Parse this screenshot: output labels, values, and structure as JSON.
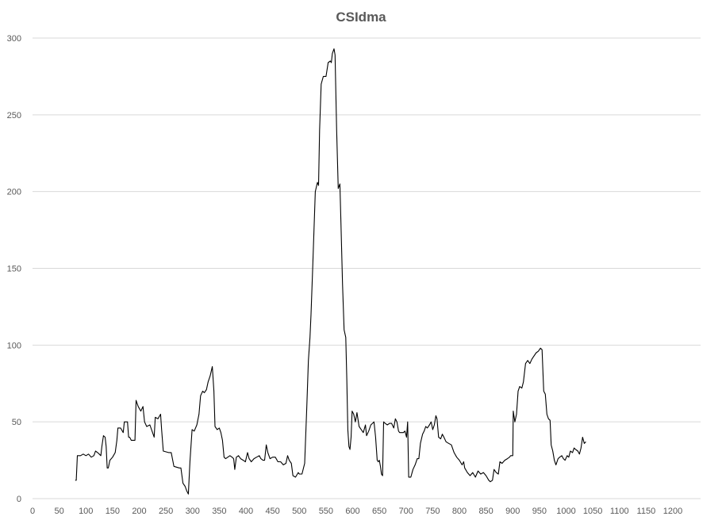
{
  "chart_data": {
    "type": "line",
    "title": "CSIdma",
    "xlabel": "",
    "ylabel": "",
    "xlim": [
      0,
      1250
    ],
    "ylim": [
      0,
      300
    ],
    "x_ticks": [
      "0",
      "50",
      "100",
      "150",
      "200",
      "250",
      "300",
      "350",
      "400",
      "450",
      "500",
      "550",
      "600",
      "650",
      "700",
      "750",
      "800",
      "850",
      "900",
      "950",
      "1000",
      "1050",
      "1100",
      "1150",
      "1200"
    ],
    "y_ticks": [
      "0",
      "50",
      "100",
      "150",
      "200",
      "250",
      "300"
    ],
    "grid": "horizontal",
    "colors": {
      "line": "#000000",
      "grid": "#d9d9d9",
      "text": "#595959"
    },
    "series": [
      {
        "name": "",
        "points": [
          [
            80,
            12
          ],
          [
            82,
            12
          ],
          [
            84,
            28
          ],
          [
            90,
            28
          ],
          [
            95,
            29
          ],
          [
            100,
            28
          ],
          [
            105,
            29
          ],
          [
            110,
            27
          ],
          [
            115,
            28
          ],
          [
            118,
            31
          ],
          [
            122,
            30
          ],
          [
            125,
            29
          ],
          [
            128,
            28
          ],
          [
            130,
            34
          ],
          [
            133,
            41
          ],
          [
            136,
            40
          ],
          [
            138,
            34
          ],
          [
            140,
            20
          ],
          [
            142,
            20
          ],
          [
            145,
            25
          ],
          [
            150,
            27
          ],
          [
            155,
            30
          ],
          [
            158,
            38
          ],
          [
            160,
            46
          ],
          [
            165,
            46
          ],
          [
            170,
            43
          ],
          [
            172,
            50
          ],
          [
            178,
            50
          ],
          [
            180,
            40
          ],
          [
            182,
            40
          ],
          [
            185,
            38
          ],
          [
            192,
            38
          ],
          [
            194,
            64
          ],
          [
            198,
            60
          ],
          [
            203,
            57
          ],
          [
            207,
            60
          ],
          [
            210,
            50
          ],
          [
            214,
            47
          ],
          [
            220,
            48
          ],
          [
            225,
            43
          ],
          [
            228,
            40
          ],
          [
            230,
            53
          ],
          [
            235,
            52
          ],
          [
            240,
            55
          ],
          [
            242,
            45
          ],
          [
            245,
            31
          ],
          [
            255,
            30
          ],
          [
            260,
            30
          ],
          [
            265,
            21
          ],
          [
            275,
            20
          ],
          [
            278,
            20
          ],
          [
            282,
            10
          ],
          [
            286,
            8
          ],
          [
            289,
            5
          ],
          [
            292,
            3
          ],
          [
            295,
            24
          ],
          [
            299,
            45
          ],
          [
            303,
            44
          ],
          [
            308,
            48
          ],
          [
            312,
            55
          ],
          [
            315,
            67
          ],
          [
            319,
            70
          ],
          [
            322,
            69
          ],
          [
            326,
            71
          ],
          [
            329,
            76
          ],
          [
            333,
            80
          ],
          [
            337,
            86
          ],
          [
            340,
            70
          ],
          [
            342,
            47
          ],
          [
            346,
            45
          ],
          [
            350,
            46
          ],
          [
            353,
            43
          ],
          [
            356,
            38
          ],
          [
            359,
            27
          ],
          [
            362,
            26
          ],
          [
            366,
            27
          ],
          [
            370,
            28
          ],
          [
            374,
            27
          ],
          [
            377,
            26
          ],
          [
            379,
            19
          ],
          [
            382,
            27
          ],
          [
            386,
            28
          ],
          [
            390,
            26
          ],
          [
            395,
            25
          ],
          [
            399,
            24
          ],
          [
            403,
            30
          ],
          [
            406,
            26
          ],
          [
            410,
            24
          ],
          [
            415,
            26
          ],
          [
            420,
            27
          ],
          [
            425,
            28
          ],
          [
            428,
            26
          ],
          [
            432,
            25
          ],
          [
            435,
            25
          ],
          [
            438,
            35
          ],
          [
            441,
            30
          ],
          [
            445,
            26
          ],
          [
            450,
            27
          ],
          [
            455,
            27
          ],
          [
            460,
            24
          ],
          [
            465,
            24
          ],
          [
            470,
            22
          ],
          [
            475,
            23
          ],
          [
            478,
            28
          ],
          [
            481,
            25
          ],
          [
            485,
            23
          ],
          [
            488,
            15
          ],
          [
            493,
            14
          ],
          [
            498,
            17
          ],
          [
            500,
            16
          ],
          [
            505,
            16
          ],
          [
            510,
            23
          ],
          [
            514,
            60
          ],
          [
            517,
            90
          ],
          [
            520,
            105
          ],
          [
            522,
            120
          ],
          [
            525,
            150
          ],
          [
            530,
            200
          ],
          [
            534,
            206
          ],
          [
            536,
            204
          ],
          [
            538,
            240
          ],
          [
            541,
            270
          ],
          [
            545,
            275
          ],
          [
            550,
            275
          ],
          [
            554,
            284
          ],
          [
            558,
            285
          ],
          [
            560,
            284
          ],
          [
            562,
            290
          ],
          [
            565,
            293
          ],
          [
            567,
            289
          ],
          [
            570,
            240
          ],
          [
            573,
            202
          ],
          [
            576,
            205
          ],
          [
            578,
            180
          ],
          [
            581,
            140
          ],
          [
            584,
            110
          ],
          [
            587,
            105
          ],
          [
            589,
            78
          ],
          [
            591,
            45
          ],
          [
            593,
            34
          ],
          [
            595,
            32
          ],
          [
            597,
            40
          ],
          [
            599,
            57
          ],
          [
            602,
            55
          ],
          [
            605,
            50
          ],
          [
            608,
            56
          ],
          [
            612,
            47
          ],
          [
            616,
            45
          ],
          [
            620,
            43
          ],
          [
            624,
            48
          ],
          [
            626,
            41
          ],
          [
            630,
            44
          ],
          [
            634,
            48
          ],
          [
            637,
            49
          ],
          [
            640,
            50
          ],
          [
            643,
            40
          ],
          [
            646,
            25
          ],
          [
            648,
            24
          ],
          [
            650,
            25
          ],
          [
            652,
            21
          ],
          [
            654,
            16
          ],
          [
            656,
            15
          ],
          [
            658,
            50
          ],
          [
            661,
            49
          ],
          [
            665,
            48
          ],
          [
            669,
            49
          ],
          [
            673,
            49
          ],
          [
            677,
            46
          ],
          [
            680,
            52
          ],
          [
            683,
            50
          ],
          [
            686,
            44
          ],
          [
            688,
            43
          ],
          [
            692,
            43
          ],
          [
            695,
            43
          ],
          [
            698,
            44
          ],
          [
            701,
            40
          ],
          [
            703,
            50
          ],
          [
            705,
            14
          ],
          [
            709,
            14
          ],
          [
            713,
            19
          ],
          [
            717,
            22
          ],
          [
            721,
            26
          ],
          [
            724,
            26
          ],
          [
            727,
            36
          ],
          [
            731,
            42
          ],
          [
            734,
            44
          ],
          [
            737,
            47
          ],
          [
            740,
            46
          ],
          [
            744,
            48
          ],
          [
            747,
            50
          ],
          [
            750,
            45
          ],
          [
            753,
            48
          ],
          [
            756,
            54
          ],
          [
            758,
            52
          ],
          [
            761,
            40
          ],
          [
            765,
            39
          ],
          [
            768,
            42
          ],
          [
            771,
            40
          ],
          [
            775,
            37
          ],
          [
            780,
            36
          ],
          [
            785,
            35
          ],
          [
            790,
            30
          ],
          [
            795,
            27
          ],
          [
            800,
            25
          ],
          [
            805,
            22
          ],
          [
            808,
            24
          ],
          [
            810,
            20
          ],
          [
            815,
            17
          ],
          [
            820,
            15
          ],
          [
            825,
            17
          ],
          [
            830,
            14
          ],
          [
            835,
            18
          ],
          [
            840,
            16
          ],
          [
            845,
            17
          ],
          [
            850,
            15
          ],
          [
            855,
            12
          ],
          [
            858,
            11
          ],
          [
            862,
            12
          ],
          [
            865,
            19
          ],
          [
            869,
            17
          ],
          [
            873,
            16
          ],
          [
            876,
            24
          ],
          [
            880,
            23
          ],
          [
            885,
            25
          ],
          [
            890,
            26
          ],
          [
            894,
            27
          ],
          [
            896,
            28
          ],
          [
            900,
            28
          ],
          [
            901,
            57
          ],
          [
            904,
            50
          ],
          [
            907,
            55
          ],
          [
            910,
            70
          ],
          [
            913,
            73
          ],
          [
            917,
            72
          ],
          [
            920,
            76
          ],
          [
            924,
            88
          ],
          [
            928,
            90
          ],
          [
            932,
            88
          ],
          [
            936,
            91
          ],
          [
            940,
            93
          ],
          [
            944,
            95
          ],
          [
            948,
            96
          ],
          [
            952,
            98
          ],
          [
            955,
            97
          ],
          [
            958,
            70
          ],
          [
            961,
            68
          ],
          [
            964,
            55
          ],
          [
            967,
            52
          ],
          [
            970,
            51
          ],
          [
            972,
            35
          ],
          [
            975,
            31
          ],
          [
            978,
            25
          ],
          [
            981,
            22
          ],
          [
            985,
            26
          ],
          [
            988,
            27
          ],
          [
            992,
            28
          ],
          [
            995,
            26
          ],
          [
            998,
            25
          ],
          [
            1002,
            28
          ],
          [
            1005,
            27
          ],
          [
            1008,
            31
          ],
          [
            1012,
            30
          ],
          [
            1015,
            33
          ],
          [
            1018,
            32
          ],
          [
            1022,
            31
          ],
          [
            1025,
            29
          ],
          [
            1028,
            33
          ],
          [
            1031,
            40
          ],
          [
            1034,
            36
          ],
          [
            1037,
            37
          ]
        ]
      }
    ],
    "x_range_shown": [
      0,
      1240
    ]
  }
}
